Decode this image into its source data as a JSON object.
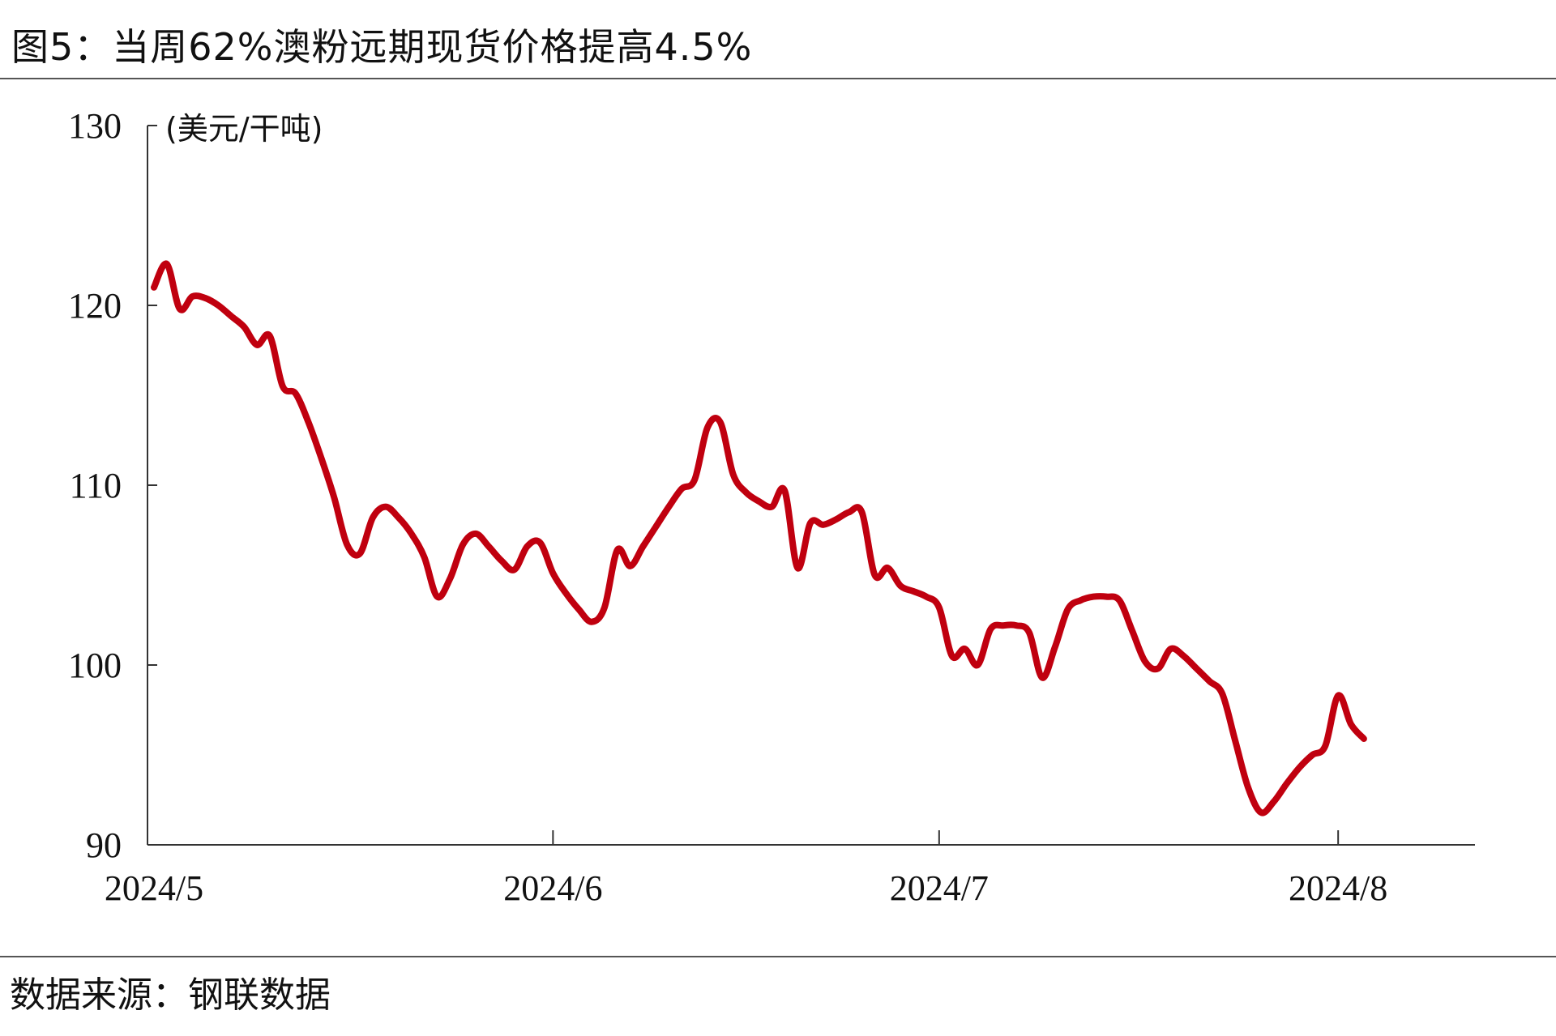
{
  "header": {
    "title": "图5：当周62%澳粉远期现货价格提高4.5%"
  },
  "footer": {
    "source": "数据来源：钢联数据"
  },
  "chart_data": {
    "type": "line",
    "title": "图5：当周62%澳粉远期现货价格提高4.5%",
    "unit_label": "(美元/干吨)",
    "ylim": [
      90,
      130
    ],
    "y_ticks": [
      90,
      100,
      110,
      120,
      130
    ],
    "x_range": [
      "2024-05-01",
      "2024-08-11"
    ],
    "x_ticks": [
      {
        "date": "2024-05-01",
        "label": "2024/5"
      },
      {
        "date": "2024-06-01",
        "label": "2024/6"
      },
      {
        "date": "2024-07-01",
        "label": "2024/7"
      },
      {
        "date": "2024-08-01",
        "label": "2024/8"
      }
    ],
    "grid": false,
    "series": [
      {
        "color": "#C0000F",
        "points": [
          [
            "2024-05-01",
            121.0
          ],
          [
            "2024-05-02",
            122.3
          ],
          [
            "2024-05-03",
            119.8
          ],
          [
            "2024-05-04",
            120.5
          ],
          [
            "2024-05-05",
            120.4
          ],
          [
            "2024-05-06",
            120.0
          ],
          [
            "2024-05-07",
            119.4
          ],
          [
            "2024-05-08",
            118.8
          ],
          [
            "2024-05-09",
            117.8
          ],
          [
            "2024-05-10",
            118.3
          ],
          [
            "2024-05-11",
            115.5
          ],
          [
            "2024-05-12",
            115.1
          ],
          [
            "2024-05-13",
            113.5
          ],
          [
            "2024-05-14",
            111.5
          ],
          [
            "2024-05-15",
            109.3
          ],
          [
            "2024-05-16",
            106.7
          ],
          [
            "2024-05-17",
            106.2
          ],
          [
            "2024-05-18",
            108.2
          ],
          [
            "2024-05-19",
            108.8
          ],
          [
            "2024-05-20",
            108.2
          ],
          [
            "2024-05-21",
            107.3
          ],
          [
            "2024-05-22",
            106.0
          ],
          [
            "2024-05-23",
            103.8
          ],
          [
            "2024-05-24",
            104.8
          ],
          [
            "2024-05-25",
            106.7
          ],
          [
            "2024-05-26",
            107.3
          ],
          [
            "2024-05-27",
            106.6
          ],
          [
            "2024-05-28",
            105.8
          ],
          [
            "2024-05-29",
            105.3
          ],
          [
            "2024-05-30",
            106.6
          ],
          [
            "2024-05-31",
            106.8
          ],
          [
            "2024-06-01",
            105.1
          ],
          [
            "2024-06-02",
            104.0
          ],
          [
            "2024-06-03",
            103.1
          ],
          [
            "2024-06-04",
            102.4
          ],
          [
            "2024-06-05",
            103.2
          ],
          [
            "2024-06-06",
            106.4
          ],
          [
            "2024-06-07",
            105.5
          ],
          [
            "2024-06-08",
            106.6
          ],
          [
            "2024-06-09",
            107.7
          ],
          [
            "2024-06-10",
            108.8
          ],
          [
            "2024-06-11",
            109.8
          ],
          [
            "2024-06-12",
            110.3
          ],
          [
            "2024-06-13",
            113.2
          ],
          [
            "2024-06-14",
            113.5
          ],
          [
            "2024-06-15",
            110.6
          ],
          [
            "2024-06-16",
            109.6
          ],
          [
            "2024-06-17",
            109.1
          ],
          [
            "2024-06-18",
            108.8
          ],
          [
            "2024-06-19",
            109.7
          ],
          [
            "2024-06-20",
            105.4
          ],
          [
            "2024-06-21",
            107.9
          ],
          [
            "2024-06-22",
            107.8
          ],
          [
            "2024-06-23",
            108.1
          ],
          [
            "2024-06-24",
            108.5
          ],
          [
            "2024-06-25",
            108.5
          ],
          [
            "2024-06-26",
            105.0
          ],
          [
            "2024-06-27",
            105.4
          ],
          [
            "2024-06-28",
            104.4
          ],
          [
            "2024-06-29",
            104.1
          ],
          [
            "2024-06-30",
            103.8
          ],
          [
            "2024-07-01",
            103.2
          ],
          [
            "2024-07-02",
            100.5
          ],
          [
            "2024-07-03",
            100.9
          ],
          [
            "2024-07-04",
            100.0
          ],
          [
            "2024-07-05",
            102.0
          ],
          [
            "2024-07-06",
            102.2
          ],
          [
            "2024-07-07",
            102.2
          ],
          [
            "2024-07-08",
            101.8
          ],
          [
            "2024-07-09",
            99.3
          ],
          [
            "2024-07-10",
            101.0
          ],
          [
            "2024-07-11",
            103.1
          ],
          [
            "2024-07-12",
            103.6
          ],
          [
            "2024-07-13",
            103.8
          ],
          [
            "2024-07-14",
            103.8
          ],
          [
            "2024-07-15",
            103.6
          ],
          [
            "2024-07-16",
            101.9
          ],
          [
            "2024-07-17",
            100.2
          ],
          [
            "2024-07-18",
            99.8
          ],
          [
            "2024-07-19",
            100.9
          ],
          [
            "2024-07-20",
            100.5
          ],
          [
            "2024-07-21",
            99.8
          ],
          [
            "2024-07-22",
            99.1
          ],
          [
            "2024-07-23",
            98.4
          ],
          [
            "2024-07-24",
            95.8
          ],
          [
            "2024-07-25",
            93.2
          ],
          [
            "2024-07-26",
            91.8
          ],
          [
            "2024-07-27",
            92.4
          ],
          [
            "2024-07-28",
            93.4
          ],
          [
            "2024-07-29",
            94.3
          ],
          [
            "2024-07-30",
            95.0
          ],
          [
            "2024-07-31",
            95.5
          ],
          [
            "2024-08-01",
            98.3
          ],
          [
            "2024-08-02",
            96.7
          ],
          [
            "2024-08-03",
            95.9
          ]
        ]
      }
    ]
  }
}
